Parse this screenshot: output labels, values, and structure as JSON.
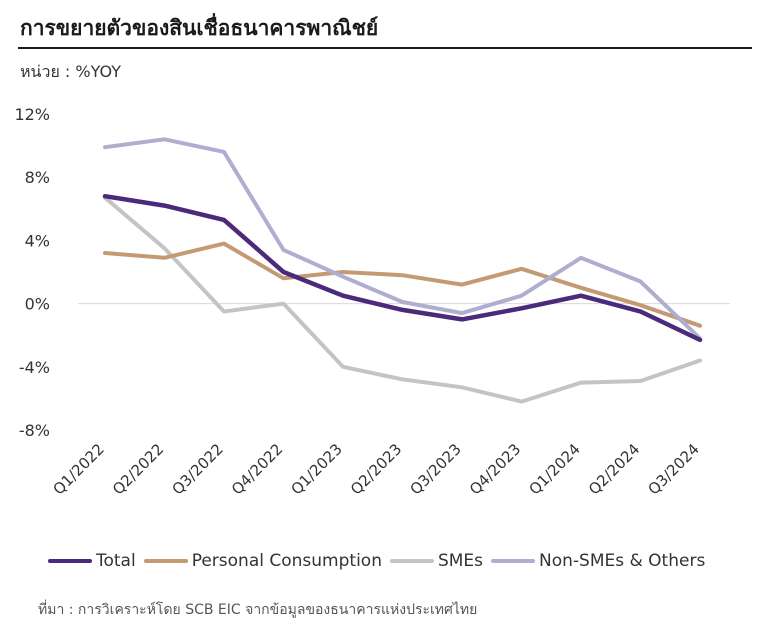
{
  "header": {
    "title": "การขยายตัวของสินเชื่อธนาคารพาณิชย์",
    "unit": "หน่วย : %YOY"
  },
  "colors": {
    "Total": "#4b2a7b",
    "Personal Consumption": "#c49a72",
    "SMEs": "#c4c4c4",
    "Non-SMEs & Others": "#aeaed0",
    "grid": "#d9d9d9"
  },
  "chart_data": {
    "type": "line",
    "x": [
      "Q1/2022",
      "Q2/2022",
      "Q3/2022",
      "Q4/2022",
      "Q1/2023",
      "Q2/2023",
      "Q3/2023",
      "Q4/2023",
      "Q1/2024",
      "Q2/2024",
      "Q3/2024"
    ],
    "ylim": [
      -8,
      12
    ],
    "yticks": [
      12,
      8,
      4,
      0,
      -4,
      -8
    ],
    "ytick_labels": [
      "12%",
      "8%",
      "4%",
      "0%",
      "-4%",
      "-8%"
    ],
    "grid": "zero-line only",
    "legend_position": "bottom",
    "series": [
      {
        "name": "Total",
        "values": [
          6.8,
          6.2,
          5.3,
          2.0,
          0.5,
          -0.4,
          -1.0,
          -0.3,
          0.5,
          -0.5,
          -2.3
        ]
      },
      {
        "name": "Personal Consumption",
        "values": [
          3.2,
          2.9,
          3.8,
          1.6,
          2.0,
          1.8,
          1.2,
          2.2,
          1.0,
          -0.1,
          -1.4
        ]
      },
      {
        "name": "SMEs",
        "values": [
          6.7,
          3.5,
          -0.5,
          0.0,
          -4.0,
          -4.8,
          -5.3,
          -6.2,
          -5.0,
          -4.9,
          -3.6
        ]
      },
      {
        "name": "Non-SMEs & Others",
        "values": [
          9.9,
          10.4,
          9.6,
          3.4,
          1.7,
          0.1,
          -0.6,
          0.5,
          2.9,
          1.4,
          -2.2
        ]
      }
    ]
  },
  "footer": {
    "source": "ที่มา : การวิเคราะห์โดย SCB EIC จากข้อมูลของธนาคารแห่งประเทศไทย"
  }
}
